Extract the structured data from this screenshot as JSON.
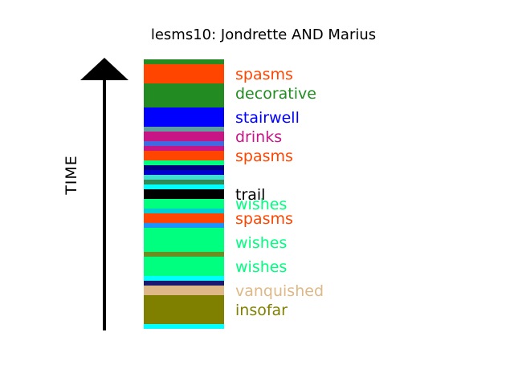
{
  "chart_data": {
    "type": "bar",
    "title": "lesms10: Jondrette AND Marius",
    "ylabel": "TIME",
    "ylim": [
      0,
      56
    ],
    "segments": [
      {
        "start": 0.0,
        "end": 1.0,
        "color": "#00ffff"
      },
      {
        "start": 1.0,
        "end": 7.0,
        "color": "#808000"
      },
      {
        "start": 7.0,
        "end": 9.0,
        "color": "#deb887"
      },
      {
        "start": 9.0,
        "end": 10.0,
        "color": "#191970"
      },
      {
        "start": 10.0,
        "end": 11.0,
        "color": "#00ffff"
      },
      {
        "start": 11.0,
        "end": 15.0,
        "color": "#00ff7f"
      },
      {
        "start": 15.0,
        "end": 16.0,
        "color": "#6b8e23"
      },
      {
        "start": 16.0,
        "end": 21.0,
        "color": "#00ff7f"
      },
      {
        "start": 21.0,
        "end": 22.0,
        "color": "#1e90ff"
      },
      {
        "start": 22.0,
        "end": 24.0,
        "color": "#ff4500"
      },
      {
        "start": 24.0,
        "end": 25.0,
        "color": "#00ced1"
      },
      {
        "start": 25.0,
        "end": 27.0,
        "color": "#00ff7f"
      },
      {
        "start": 27.0,
        "end": 29.0,
        "color": "#000000"
      },
      {
        "start": 29.0,
        "end": 30.0,
        "color": "#00ffff"
      },
      {
        "start": 30.0,
        "end": 31.0,
        "color": "#2e8b57"
      },
      {
        "start": 31.0,
        "end": 32.0,
        "color": "#40e0d0"
      },
      {
        "start": 32.0,
        "end": 33.0,
        "color": "#0000cd"
      },
      {
        "start": 33.0,
        "end": 34.0,
        "color": "#000080"
      },
      {
        "start": 34.0,
        "end": 35.0,
        "color": "#00ff7f"
      },
      {
        "start": 35.0,
        "end": 37.0,
        "color": "#ff4500"
      },
      {
        "start": 37.0,
        "end": 38.0,
        "color": "#c71585"
      },
      {
        "start": 38.0,
        "end": 39.0,
        "color": "#4169e1"
      },
      {
        "start": 39.0,
        "end": 41.0,
        "color": "#c71585"
      },
      {
        "start": 41.0,
        "end": 42.0,
        "color": "#5f9ea0"
      },
      {
        "start": 42.0,
        "end": 46.0,
        "color": "#0000ff"
      },
      {
        "start": 46.0,
        "end": 51.0,
        "color": "#228b22"
      },
      {
        "start": 51.0,
        "end": 55.0,
        "color": "#ff4500"
      },
      {
        "start": 55.0,
        "end": 56.0,
        "color": "#228b22"
      }
    ],
    "annotations": [
      {
        "text": "insofar",
        "y": 4.0,
        "color": "#808000"
      },
      {
        "text": "vanquished",
        "y": 8.0,
        "color": "#deb887"
      },
      {
        "text": "wishes",
        "y": 13.0,
        "color": "#00ff7f"
      },
      {
        "text": "wishes",
        "y": 18.0,
        "color": "#00ff7f"
      },
      {
        "text": "spasms",
        "y": 23.0,
        "color": "#ff4500"
      },
      {
        "text": "wishes",
        "y": 26.0,
        "color": "#00ff7f"
      },
      {
        "text": "trail",
        "y": 28.0,
        "color": "#000000"
      },
      {
        "text": "spasms",
        "y": 36.0,
        "color": "#ff4500"
      },
      {
        "text": "drinks",
        "y": 40.0,
        "color": "#c71585"
      },
      {
        "text": "stairwell",
        "y": 44.0,
        "color": "#0000ff"
      },
      {
        "text": "decorative",
        "y": 49.0,
        "color": "#228b22"
      },
      {
        "text": "spasms",
        "y": 53.0,
        "color": "#ff4500"
      }
    ]
  }
}
